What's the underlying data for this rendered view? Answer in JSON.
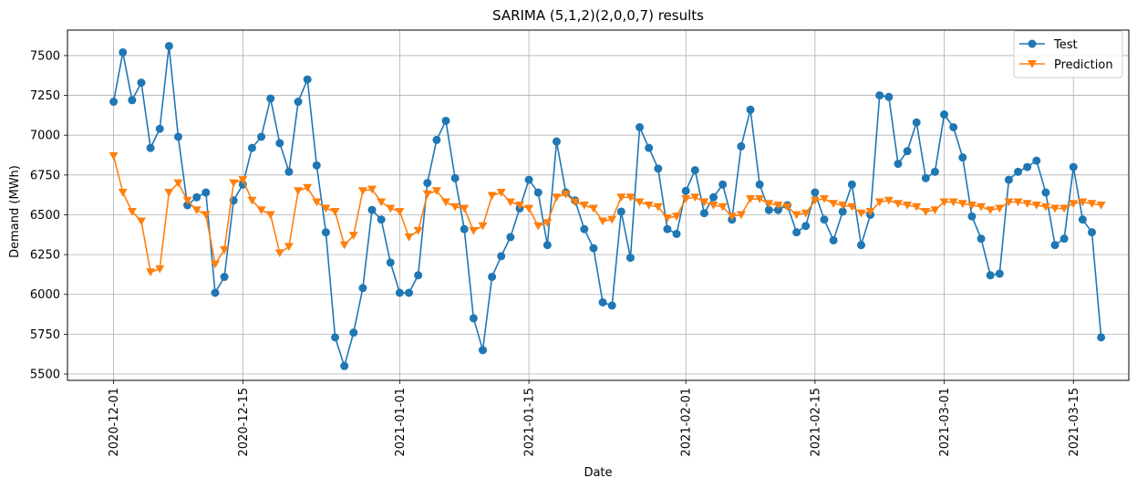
{
  "chart_data": {
    "type": "line",
    "title": "SARIMA (5,1,2)(2,0,0,7) results",
    "xlabel": "Date",
    "ylabel": "Demand (MWh)",
    "x_start": "2020-12-01",
    "x_end": "2021-03-18",
    "xlim": [
      "2020-11-26",
      "2021-03-21"
    ],
    "ylim": [
      5460,
      7660
    ],
    "x_ticks": [
      "2020-12-01",
      "2020-12-15",
      "2021-01-01",
      "2021-01-15",
      "2021-02-01",
      "2021-02-15",
      "2021-03-01",
      "2021-03-15"
    ],
    "y_ticks": [
      5500,
      5750,
      6000,
      6250,
      6500,
      6750,
      7000,
      7250,
      7500
    ],
    "grid": true,
    "legend_position": "top-right",
    "series": [
      {
        "name": "Test",
        "color": "#1f77b4",
        "marker": "circle",
        "values": [
          7210,
          7520,
          7220,
          7330,
          6920,
          7040,
          7560,
          6990,
          6560,
          6610,
          6640,
          6010,
          6110,
          6590,
          6690,
          6920,
          6990,
          7230,
          6950,
          6770,
          7210,
          7350,
          6810,
          6390,
          5730,
          5550,
          5760,
          6040,
          6530,
          6470,
          6200,
          6010,
          6010,
          6120,
          6700,
          6970,
          7090,
          6730,
          6410,
          5850,
          5650,
          6110,
          6240,
          6360,
          6540,
          6720,
          6640,
          6310,
          6960,
          6640,
          6590,
          6410,
          6290,
          5950,
          5930,
          6520,
          6230,
          7050,
          6920,
          6790,
          6410,
          6380,
          6650,
          6780,
          6510,
          6610,
          6690,
          6470,
          6930,
          7160,
          6690,
          6530,
          6530,
          6560,
          6390,
          6430,
          6640,
          6470,
          6340,
          6520,
          6690,
          6310,
          6500,
          7250,
          7240,
          6820,
          6900,
          7080,
          6730,
          6770,
          7130,
          7050,
          6860,
          6490,
          6350,
          6120,
          6130,
          6720,
          6770,
          6800,
          6840,
          6640,
          6310,
          6350,
          6800,
          6470,
          6390,
          5730
        ]
      },
      {
        "name": "Prediction",
        "color": "#ff7f0e",
        "marker": "triangle-down",
        "values": [
          6870,
          6640,
          6520,
          6460,
          6140,
          6160,
          6640,
          6700,
          6590,
          6530,
          6500,
          6190,
          6280,
          6700,
          6720,
          6590,
          6530,
          6500,
          6260,
          6300,
          6650,
          6670,
          6580,
          6540,
          6520,
          6310,
          6370,
          6650,
          6660,
          6580,
          6540,
          6520,
          6360,
          6400,
          6630,
          6650,
          6580,
          6550,
          6540,
          6400,
          6430,
          6620,
          6640,
          6580,
          6560,
          6540,
          6430,
          6450,
          6610,
          6630,
          6580,
          6560,
          6540,
          6460,
          6470,
          6610,
          6610,
          6580,
          6560,
          6550,
          6480,
          6490,
          6600,
          6610,
          6580,
          6560,
          6550,
          6490,
          6500,
          6600,
          6600,
          6570,
          6560,
          6550,
          6500,
          6510,
          6590,
          6600,
          6570,
          6560,
          6550,
          6510,
          6520,
          6580,
          6590,
          6570,
          6560,
          6550,
          6520,
          6530,
          6580,
          6580,
          6570,
          6560,
          6550,
          6530,
          6540,
          6580,
          6580,
          6570,
          6560,
          6550,
          6540,
          6540,
          6570,
          6580,
          6570,
          6560
        ]
      }
    ]
  }
}
